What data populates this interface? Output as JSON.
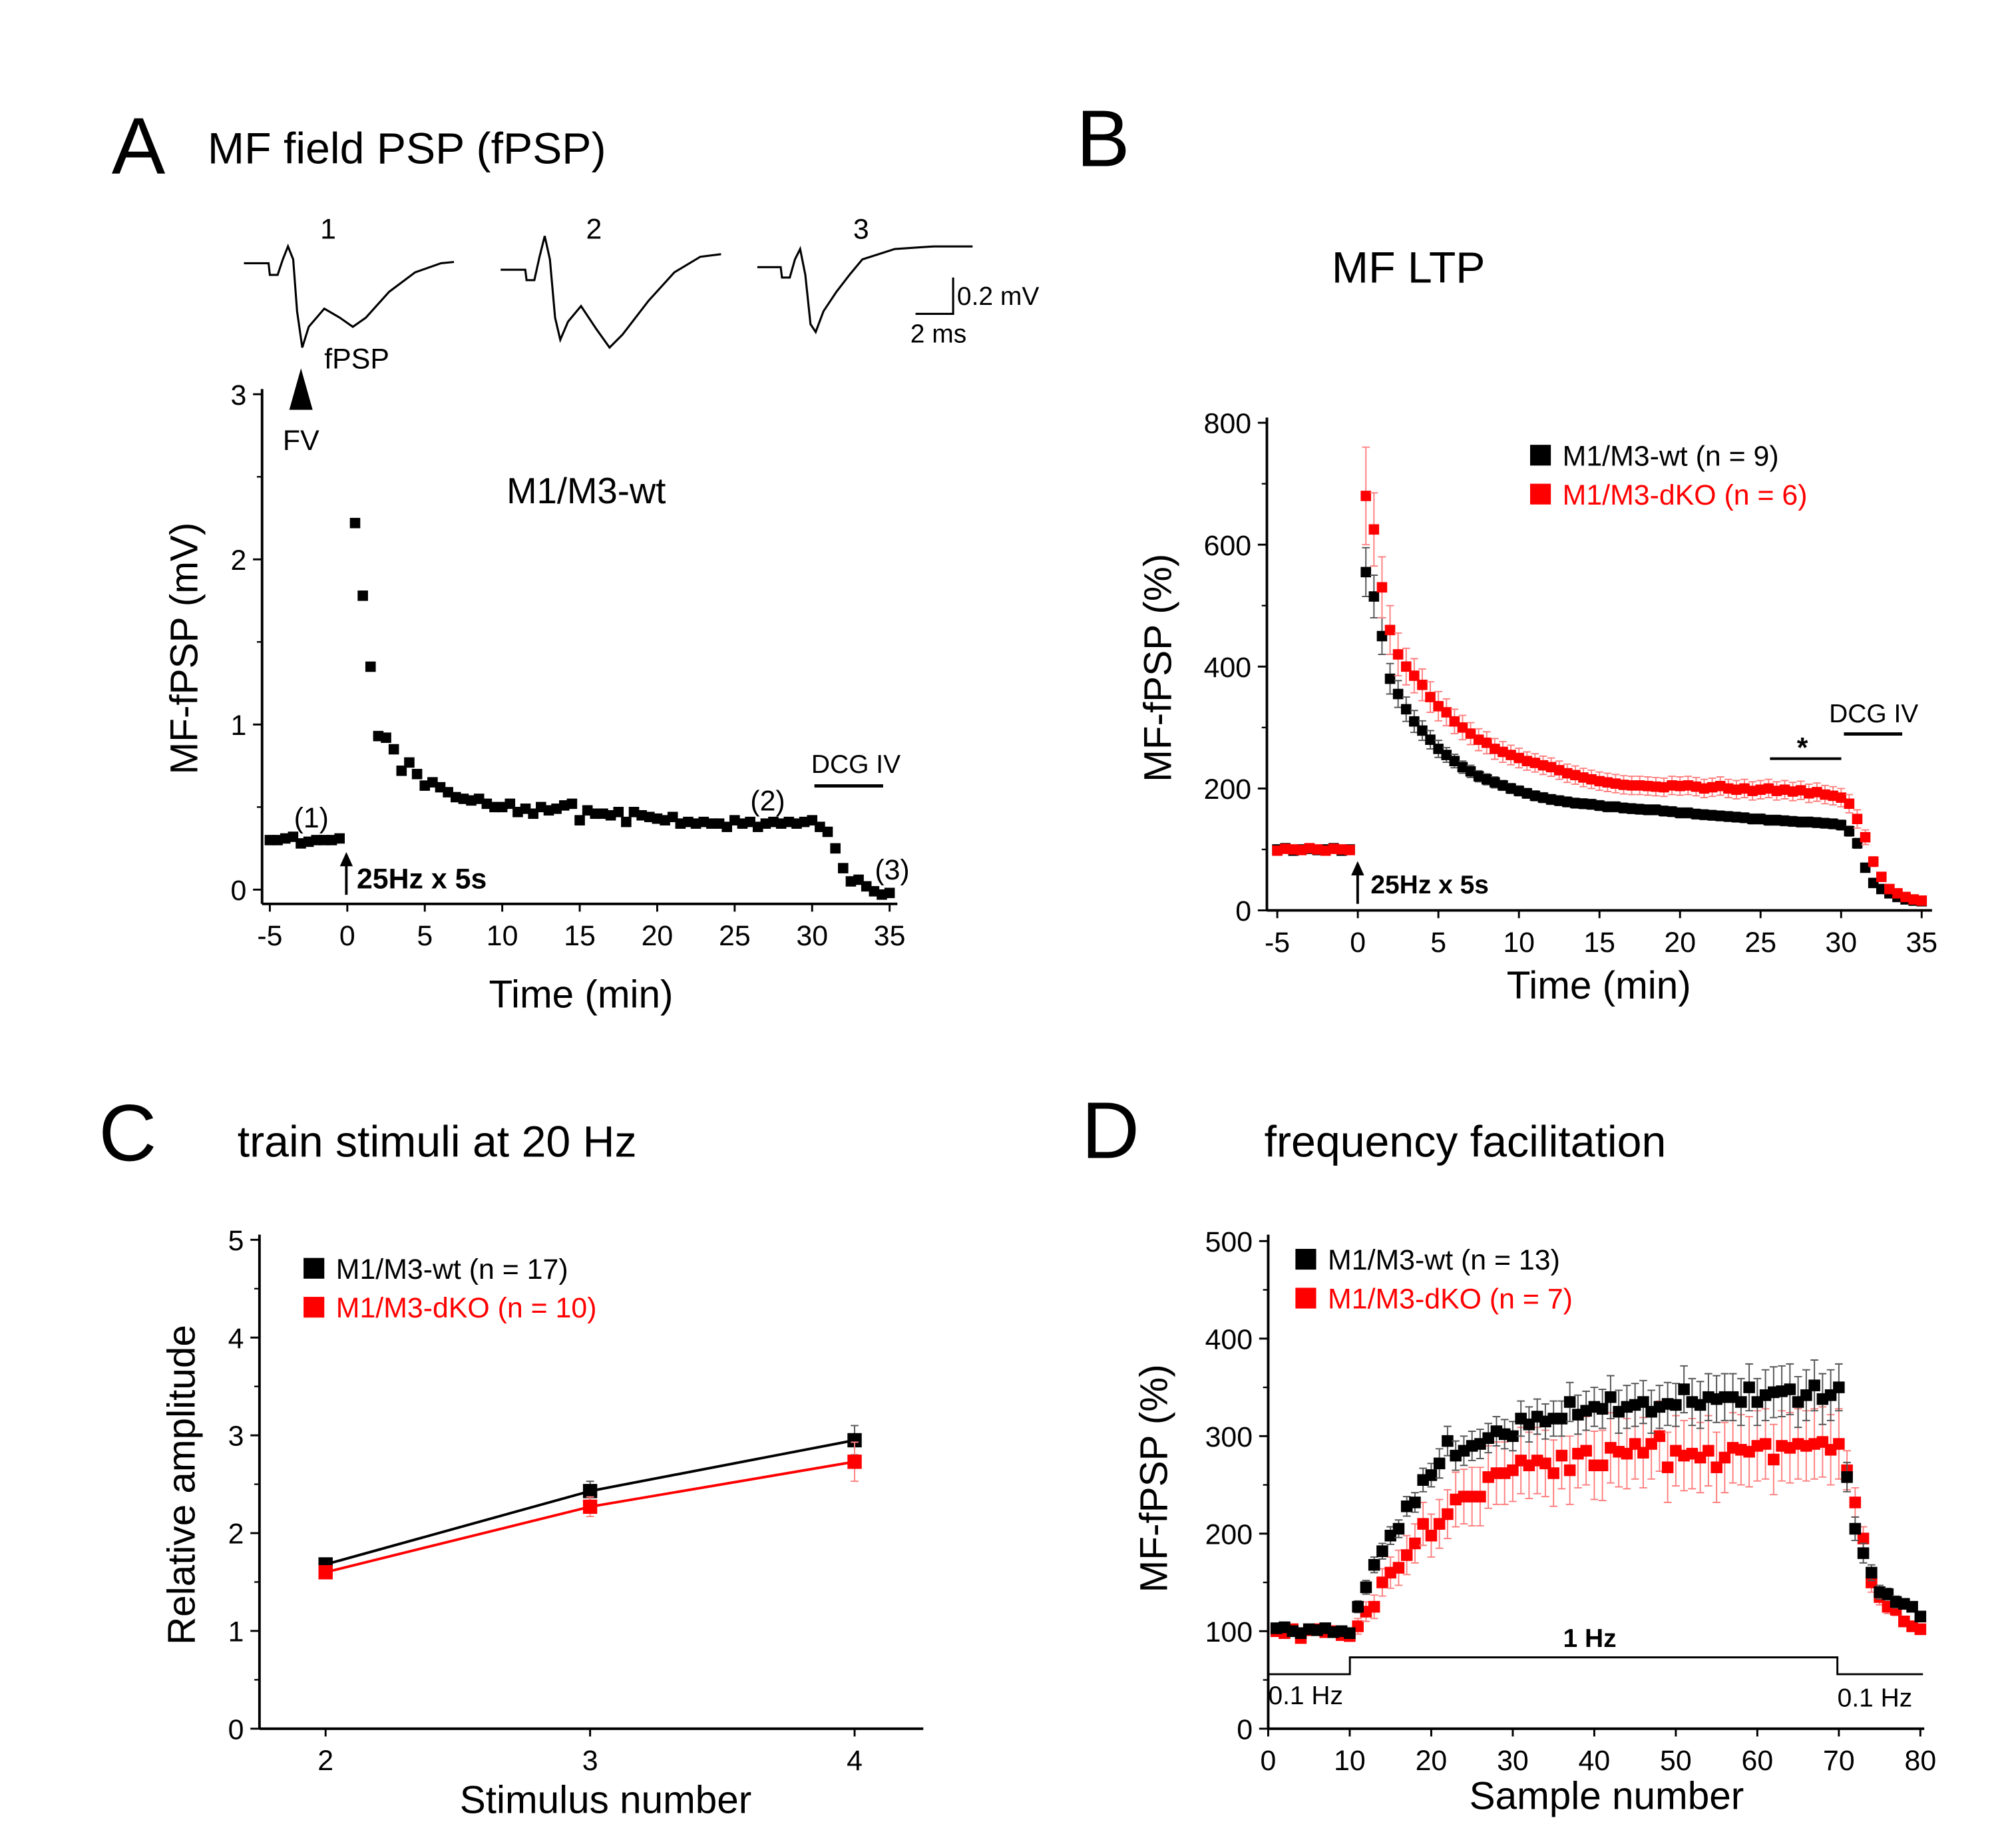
{
  "panels": {
    "A": {
      "letter": "A",
      "title": "MF field PSP (fPSP)",
      "group_label": "M1/M3-wt",
      "trace_labels": [
        "1",
        "2",
        "3"
      ],
      "fpsp_label": "fPSP",
      "fv_label": "FV",
      "scale_bar": {
        "voltage": "0.2 mV",
        "time": "2 ms"
      },
      "point_labels": [
        "(1)",
        "(2)",
        "(3)"
      ],
      "stim_label": "25Hz x 5s",
      "drug_label": "DCG IV"
    },
    "B": {
      "letter": "B",
      "title": "MF LTP",
      "stim_label": "25Hz x 5s",
      "drug_label": "DCG IV",
      "sig_label": "*"
    },
    "C": {
      "letter": "C",
      "title": "train stimuli at 20 Hz"
    },
    "D": {
      "letter": "D",
      "title": "frequency facilitation",
      "protocol": {
        "low_left": "0.1 Hz",
        "high": "1 Hz",
        "low_right": "0.1 Hz"
      }
    }
  },
  "colors": {
    "wt": "#000000",
    "dko": "#ff0000",
    "dko_error": "#ff8080"
  },
  "chart_data": [
    {
      "id": "A",
      "type": "scatter",
      "xlabel": "Time (min)",
      "ylabel": "MF-fPSP (mV)",
      "xlim": [
        -5,
        35
      ],
      "ylim": [
        0,
        3
      ],
      "xticks": [
        "-5",
        "0",
        "5",
        "10",
        "15",
        "20",
        "25",
        "30",
        "35"
      ],
      "yticks": [
        "0",
        "1",
        "2",
        "3"
      ],
      "stimulus_time": 0,
      "drug_period": [
        30,
        35
      ],
      "x": [
        -5,
        -4.5,
        -4,
        -3.5,
        -3,
        -2.5,
        -2,
        -1.5,
        -1,
        -0.5,
        0.5,
        1,
        1.5,
        2,
        2.5,
        3,
        3.5,
        4,
        4.5,
        5,
        5.5,
        6,
        6.5,
        7,
        7.5,
        8,
        8.5,
        9,
        9.5,
        10,
        10.5,
        11,
        11.5,
        12,
        12.5,
        13,
        13.5,
        14,
        14.5,
        15,
        15.5,
        16,
        16.5,
        17,
        17.5,
        18,
        18.5,
        19,
        19.5,
        20,
        20.5,
        21,
        21.5,
        22,
        22.5,
        23,
        23.5,
        24,
        24.5,
        25,
        25.5,
        26,
        26.5,
        27,
        27.5,
        28,
        28.5,
        29,
        29.5,
        30,
        30.5,
        31,
        31.5,
        32,
        32.5,
        33,
        33.5,
        34,
        34.5,
        35
      ],
      "series": [
        {
          "values": [
            0.3,
            0.3,
            0.31,
            0.32,
            0.28,
            0.29,
            0.3,
            0.3,
            0.3,
            0.31,
            2.22,
            1.78,
            1.35,
            0.93,
            0.92,
            0.85,
            0.72,
            0.77,
            0.7,
            0.63,
            0.65,
            0.62,
            0.59,
            0.56,
            0.55,
            0.54,
            0.55,
            0.52,
            0.5,
            0.5,
            0.52,
            0.47,
            0.49,
            0.46,
            0.5,
            0.48,
            0.49,
            0.51,
            0.52,
            0.42,
            0.48,
            0.46,
            0.46,
            0.45,
            0.47,
            0.41,
            0.47,
            0.45,
            0.44,
            0.43,
            0.42,
            0.44,
            0.4,
            0.41,
            0.4,
            0.41,
            0.4,
            0.4,
            0.38,
            0.42,
            0.4,
            0.41,
            0.38,
            0.4,
            0.41,
            0.4,
            0.41,
            0.4,
            0.41,
            0.42,
            0.38,
            0.35,
            0.25,
            0.13,
            0.05,
            0.06,
            0.02,
            -0.01,
            -0.03,
            -0.02
          ]
        }
      ]
    },
    {
      "id": "B",
      "type": "scatter",
      "xlabel": "Time (min)",
      "ylabel": "MF-fPSP (%)",
      "xlim": [
        -5,
        35
      ],
      "ylim": [
        0,
        800
      ],
      "xticks": [
        "-5",
        "0",
        "5",
        "10",
        "15",
        "20",
        "25",
        "30",
        "35"
      ],
      "yticks": [
        "0",
        "200",
        "400",
        "600",
        "800"
      ],
      "legend": "top-right",
      "stimulus_time": 0,
      "drug_period": [
        30.2,
        33.8
      ],
      "significance_period": [
        25.5,
        30
      ],
      "x": [
        -5,
        -4.5,
        -4,
        -3.5,
        -3,
        -2.5,
        -2,
        -1.5,
        -1,
        -0.5,
        0.5,
        1,
        1.5,
        2,
        2.5,
        3,
        3.5,
        4,
        4.5,
        5,
        5.5,
        6,
        6.5,
        7,
        7.5,
        8,
        8.5,
        9,
        9.5,
        10,
        10.5,
        11,
        11.5,
        12,
        12.5,
        13,
        13.5,
        14,
        14.5,
        15,
        15.5,
        16,
        16.5,
        17,
        17.5,
        18,
        18.5,
        19,
        19.5,
        20,
        20.5,
        21,
        21.5,
        22,
        22.5,
        23,
        23.5,
        24,
        24.5,
        25,
        25.5,
        26,
        26.5,
        27,
        27.5,
        28,
        28.5,
        29,
        29.5,
        30,
        30.5,
        31,
        31.5,
        32,
        32.5,
        33,
        33.5,
        34,
        34.5,
        35
      ],
      "series": [
        {
          "name": "M1/M3-wt (n = 9)",
          "color": "#000000",
          "values": [
            100,
            102,
            98,
            100,
            101,
            99,
            100,
            102,
            98,
            100,
            555,
            515,
            450,
            380,
            355,
            330,
            310,
            295,
            280,
            265,
            255,
            245,
            235,
            228,
            220,
            215,
            210,
            205,
            200,
            196,
            192,
            188,
            185,
            182,
            180,
            178,
            176,
            175,
            174,
            172,
            170,
            170,
            168,
            167,
            166,
            165,
            165,
            163,
            162,
            160,
            160,
            158,
            157,
            156,
            155,
            154,
            153,
            152,
            150,
            150,
            148,
            148,
            147,
            146,
            145,
            145,
            144,
            143,
            142,
            140,
            130,
            110,
            70,
            45,
            35,
            28,
            22,
            18,
            16,
            15
          ],
          "sem": [
            6,
            6,
            6,
            6,
            6,
            6,
            6,
            6,
            6,
            6,
            40,
            35,
            30,
            25,
            22,
            20,
            18,
            16,
            15,
            14,
            12,
            11,
            10,
            10,
            9,
            9,
            9,
            8,
            8,
            8,
            8,
            8,
            8,
            8,
            8,
            8,
            8,
            8,
            8,
            8,
            8,
            8,
            8,
            8,
            8,
            8,
            8,
            8,
            8,
            8,
            8,
            8,
            8,
            8,
            8,
            8,
            8,
            8,
            8,
            8,
            8,
            8,
            8,
            8,
            8,
            8,
            8,
            8,
            8,
            8,
            8,
            8,
            6,
            5,
            4,
            4,
            3,
            3,
            3,
            3
          ]
        },
        {
          "name": "M1/M3-dKO (n = 6)",
          "color": "#ff0000",
          "values": [
            98,
            101,
            100,
            99,
            102,
            100,
            98,
            101,
            100,
            99,
            680,
            625,
            530,
            460,
            420,
            400,
            385,
            370,
            350,
            335,
            325,
            310,
            300,
            290,
            280,
            275,
            265,
            260,
            255,
            250,
            245,
            242,
            238,
            235,
            230,
            225,
            222,
            218,
            215,
            212,
            210,
            208,
            206,
            205,
            205,
            204,
            203,
            202,
            205,
            204,
            205,
            203,
            200,
            202,
            204,
            200,
            198,
            200,
            196,
            198,
            200,
            196,
            198,
            195,
            197,
            192,
            194,
            190,
            188,
            185,
            175,
            150,
            120,
            80,
            55,
            35,
            28,
            22,
            18,
            16
          ],
          "sem": [
            6,
            6,
            6,
            6,
            6,
            6,
            6,
            6,
            6,
            6,
            80,
            60,
            50,
            40,
            35,
            30,
            28,
            26,
            25,
            24,
            22,
            20,
            20,
            18,
            18,
            18,
            17,
            17,
            16,
            16,
            15,
            15,
            15,
            15,
            15,
            15,
            15,
            15,
            15,
            15,
            15,
            15,
            15,
            15,
            15,
            15,
            15,
            15,
            15,
            15,
            15,
            15,
            15,
            15,
            15,
            15,
            15,
            15,
            15,
            15,
            15,
            15,
            15,
            15,
            15,
            15,
            15,
            15,
            15,
            15,
            15,
            15,
            12,
            8,
            6,
            5,
            4,
            4,
            3,
            3
          ]
        }
      ]
    },
    {
      "id": "C",
      "type": "line",
      "xlabel": "Stimulus number",
      "ylabel": "Relative amplitude",
      "xlim": [
        1.5,
        4.25
      ],
      "ylim": [
        0,
        5
      ],
      "xticks": [
        "2",
        "3",
        "4"
      ],
      "yticks": [
        "0",
        "1",
        "2",
        "3",
        "4",
        "5"
      ],
      "legend": "top-left",
      "x": [
        2,
        3,
        4
      ],
      "series": [
        {
          "name": "M1/M3-wt (n = 17)",
          "color": "#000000",
          "values": [
            1.68,
            2.43,
            2.95
          ],
          "sem": [
            0.06,
            0.1,
            0.15
          ]
        },
        {
          "name": "M1/M3-dKO (n = 10)",
          "color": "#ff0000",
          "values": [
            1.6,
            2.27,
            2.73
          ],
          "sem": [
            0.06,
            0.1,
            0.2
          ]
        }
      ]
    },
    {
      "id": "D",
      "type": "scatter",
      "xlabel": "Sample number",
      "ylabel": "MF-fPSP (%)",
      "xlim": [
        0,
        80
      ],
      "ylim": [
        0,
        500
      ],
      "xticks": [
        "0",
        "10",
        "20",
        "30",
        "40",
        "50",
        "60",
        "70",
        "80"
      ],
      "yticks": [
        "0",
        "100",
        "200",
        "300",
        "400",
        "500"
      ],
      "legend": "top-left",
      "series": [
        {
          "name": "M1/M3-wt (n = 13)",
          "color": "#000000",
          "values": [
            103,
            104,
            100,
            98,
            102,
            101,
            103,
            99,
            100,
            98,
            125,
            145,
            168,
            182,
            198,
            205,
            228,
            232,
            255,
            260,
            272,
            295,
            280,
            285,
            290,
            292,
            298,
            305,
            302,
            300,
            318,
            312,
            320,
            315,
            318,
            318,
            335,
            322,
            326,
            330,
            328,
            340,
            325,
            330,
            332,
            335,
            325,
            330,
            333,
            332,
            348,
            335,
            332,
            340,
            338,
            340,
            340,
            335,
            350,
            335,
            342,
            345,
            346,
            348,
            335,
            342,
            352,
            338,
            342,
            350,
            258,
            205,
            180,
            160,
            140,
            138,
            130,
            128,
            125,
            115
          ],
          "sem": [
            4,
            4,
            4,
            4,
            4,
            4,
            4,
            4,
            4,
            4,
            6,
            7,
            8,
            8,
            9,
            9,
            10,
            10,
            12,
            12,
            15,
            15,
            15,
            15,
            15,
            15,
            15,
            15,
            15,
            15,
            18,
            18,
            18,
            18,
            18,
            18,
            20,
            20,
            20,
            20,
            20,
            22,
            22,
            22,
            22,
            22,
            22,
            22,
            22,
            22,
            24,
            24,
            24,
            24,
            24,
            24,
            24,
            24,
            24,
            24,
            26,
            26,
            26,
            26,
            26,
            26,
            26,
            26,
            26,
            24,
            15,
            12,
            10,
            8,
            7,
            6,
            6,
            5,
            5,
            5
          ]
        },
        {
          "name": "M1/M3-dKO (n = 7)",
          "color": "#ff0000",
          "values": [
            100,
            98,
            102,
            93,
            101,
            102,
            99,
            100,
            96,
            95,
            105,
            120,
            125,
            150,
            160,
            165,
            178,
            190,
            210,
            198,
            210,
            220,
            235,
            238,
            238,
            238,
            258,
            262,
            262,
            265,
            275,
            270,
            275,
            272,
            262,
            280,
            265,
            282,
            285,
            270,
            270,
            288,
            284,
            282,
            292,
            283,
            292,
            300,
            268,
            285,
            280,
            282,
            278,
            285,
            268,
            278,
            288,
            286,
            284,
            290,
            292,
            276,
            290,
            288,
            292,
            290,
            292,
            294,
            286,
            292,
            265,
            232,
            195,
            150,
            135,
            125,
            122,
            110,
            105,
            102
          ],
          "sem": [
            4,
            4,
            4,
            4,
            4,
            4,
            4,
            4,
            4,
            4,
            8,
            10,
            12,
            14,
            16,
            18,
            20,
            20,
            22,
            22,
            25,
            25,
            28,
            28,
            30,
            30,
            32,
            32,
            32,
            32,
            34,
            34,
            34,
            34,
            34,
            34,
            35,
            35,
            35,
            35,
            36,
            36,
            36,
            36,
            36,
            36,
            36,
            36,
            36,
            36,
            36,
            36,
            36,
            36,
            36,
            36,
            36,
            36,
            36,
            36,
            36,
            36,
            36,
            36,
            36,
            36,
            36,
            36,
            36,
            36,
            20,
            15,
            12,
            10,
            8,
            7,
            6,
            5,
            5,
            5
          ]
        }
      ]
    }
  ]
}
